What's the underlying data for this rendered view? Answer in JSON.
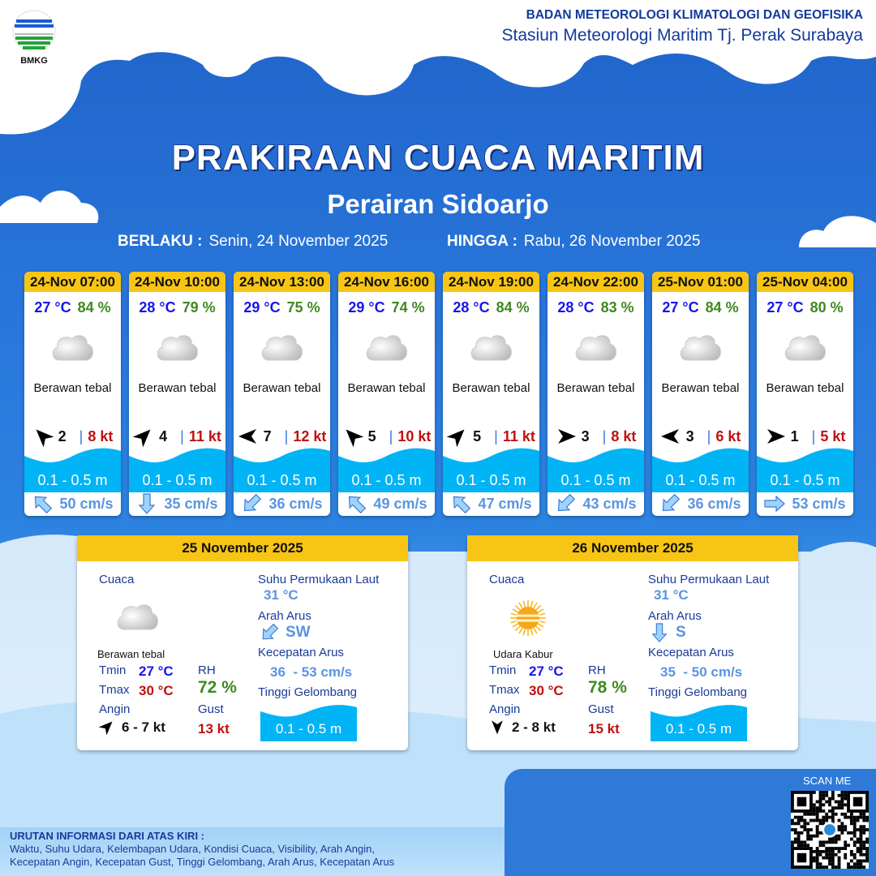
{
  "header": {
    "logo_text": "BMKG",
    "org": "BADAN METEOROLOGI KLIMATOLOGI DAN GEOFISIKA",
    "station": "Stasiun Meteorologi Maritim Tj. Perak Surabaya"
  },
  "title": "PRAKIRAAN CUACA MARITIM",
  "subtitle": "Perairan Sidoarjo",
  "validity": {
    "from_label": "BERLAKU :",
    "from": "Senin, 24 November 2025",
    "to_label": "HINGGA :",
    "to": "Rabu, 26 November 2025"
  },
  "colors": {
    "card_header": "#f7c514",
    "temp": "#1515f0",
    "humidity": "#3f8a1f",
    "gust": "#c01010",
    "wave": "#00b4f5"
  },
  "forecasts": [
    {
      "time": "24-Nov 07:00",
      "temp": "27 °C",
      "rh": "84 %",
      "icon": "cloud-icon",
      "cond": "Berawan tebal",
      "wind_dir_deg": 315,
      "wind": "2",
      "gust": "8 kt",
      "wave": "0.1 - 0.5 m",
      "current_dir_deg": 315,
      "current": "50 cm/s"
    },
    {
      "time": "24-Nov 10:00",
      "temp": "28 °C",
      "rh": "79 %",
      "icon": "cloud-icon",
      "cond": "Berawan tebal",
      "wind_dir_deg": 45,
      "wind": "4",
      "gust": "11 kt",
      "wave": "0.1 - 0.5 m",
      "current_dir_deg": 180,
      "current": "35 cm/s"
    },
    {
      "time": "24-Nov 13:00",
      "temp": "29 °C",
      "rh": "75 %",
      "icon": "cloud-icon",
      "cond": "Berawan tebal",
      "wind_dir_deg": 270,
      "wind": "7",
      "gust": "12 kt",
      "wave": "0.1 - 0.5 m",
      "current_dir_deg": 225,
      "current": "36 cm/s"
    },
    {
      "time": "24-Nov 16:00",
      "temp": "29 °C",
      "rh": "74 %",
      "icon": "cloud-icon",
      "cond": "Berawan tebal",
      "wind_dir_deg": 315,
      "wind": "5",
      "gust": "10 kt",
      "wave": "0.1 - 0.5 m",
      "current_dir_deg": 315,
      "current": "49 cm/s"
    },
    {
      "time": "24-Nov 19:00",
      "temp": "28 °C",
      "rh": "84 %",
      "icon": "cloud-icon",
      "cond": "Berawan tebal",
      "wind_dir_deg": 45,
      "wind": "5",
      "gust": "11 kt",
      "wave": "0.1 - 0.5 m",
      "current_dir_deg": 315,
      "current": "47 cm/s"
    },
    {
      "time": "24-Nov 22:00",
      "temp": "28 °C",
      "rh": "83 %",
      "icon": "cloud-icon",
      "cond": "Berawan tebal",
      "wind_dir_deg": 90,
      "wind": "3",
      "gust": "8 kt",
      "wave": "0.1 - 0.5 m",
      "current_dir_deg": 225,
      "current": "43 cm/s"
    },
    {
      "time": "25-Nov 01:00",
      "temp": "27 °C",
      "rh": "84 %",
      "icon": "cloud-icon",
      "cond": "Berawan tebal",
      "wind_dir_deg": 270,
      "wind": "3",
      "gust": "6 kt",
      "wave": "0.1 - 0.5 m",
      "current_dir_deg": 225,
      "current": "36 cm/s"
    },
    {
      "time": "25-Nov 04:00",
      "temp": "27 °C",
      "rh": "80 %",
      "icon": "cloud-icon",
      "cond": "Berawan tebal",
      "wind_dir_deg": 90,
      "wind": "1",
      "gust": "5 kt",
      "wave": "0.1 - 0.5 m",
      "current_dir_deg": 90,
      "current": "53 cm/s"
    }
  ],
  "daily": [
    {
      "date": "25 November 2025",
      "weather_label": "Cuaca",
      "icon": "cloud-icon",
      "cond": "Berawan tebal",
      "tmin_label": "Tmin",
      "tmin": "27 °C",
      "tmax_label": "Tmax",
      "tmax": "30 °C",
      "rh_label": "RH",
      "rh": "72 %",
      "wind_label": "Angin",
      "wind_dir_deg": 45,
      "wind": "6 - 7 kt",
      "gust_label": "Gust",
      "gust": "13 kt",
      "sst_label": "Suhu Permukaan Laut",
      "sst": "31 °C",
      "cur_dir_label": "Arah Arus",
      "cur_dir_deg": 225,
      "cur_dir": "SW",
      "cur_speed_label": "Kecepatan Arus",
      "cur_speed": "36  - 53 cm/s",
      "wave_label": "Tinggi Gelombang",
      "wave": "0.1 - 0.5 m"
    },
    {
      "date": "26 November 2025",
      "weather_label": "Cuaca",
      "icon": "sun-haze-icon",
      "cond": "Udara Kabur",
      "tmin_label": "Tmin",
      "tmin": "27 °C",
      "tmax_label": "Tmax",
      "tmax": "30 °C",
      "rh_label": "RH",
      "rh": "78 %",
      "wind_label": "Angin",
      "wind_dir_deg": 180,
      "wind": "2 - 8 kt",
      "gust_label": "Gust",
      "gust": "15 kt",
      "sst_label": "Suhu Permukaan Laut",
      "sst": "31 °C",
      "cur_dir_label": "Arah Arus",
      "cur_dir_deg": 180,
      "cur_dir": "S",
      "cur_speed_label": "Kecepatan Arus",
      "cur_speed": "35  - 50 cm/s",
      "wave_label": "Tinggi Gelombang",
      "wave": "0.1 - 0.5 m"
    }
  ],
  "footer": {
    "heading": "URUTAN INFORMASI DARI ATAS KIRI :",
    "line1": "Waktu, Suhu Udara, Kelembapan Udara, Kondisi Cuaca, Visibility, Arah Angin,",
    "line2": "Kecepatan Angin, Kecepatan Gust, Tinggi Gelombang, Arah Arus, Kecepatan Arus",
    "scan": "SCAN ME"
  }
}
